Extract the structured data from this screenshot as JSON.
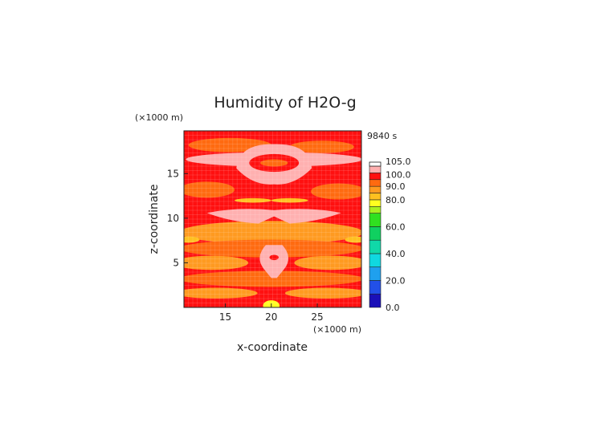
{
  "chart_data": {
    "type": "heatmap",
    "title": "Humidity of H2O-g",
    "xlabel": "x-coordinate",
    "ylabel": "z-coordinate",
    "x_unit": "(×1000 m)",
    "y_unit": "(×1000 m)",
    "time_label": "9840 s",
    "xlim": [
      10.5,
      29.8
    ],
    "ylim": [
      0,
      19.8
    ],
    "x_ticks": [
      "15",
      "20",
      "25"
    ],
    "x_tick_values": [
      15,
      20,
      25
    ],
    "y_ticks": [
      "5",
      "10",
      "15"
    ],
    "y_tick_values": [
      5,
      10,
      15
    ],
    "colorbar": {
      "labels": [
        "105.0",
        "100.0",
        "90.0",
        "80.0",
        "60.0",
        "40.0",
        "20.0",
        "0.0"
      ],
      "label_values": [
        105,
        100,
        90,
        80,
        60,
        40,
        20,
        0
      ],
      "levels": [
        {
          "min": 0,
          "max": 10,
          "color": "#1a10b8"
        },
        {
          "min": 10,
          "max": 20,
          "color": "#2250e8"
        },
        {
          "min": 20,
          "max": 30,
          "color": "#1fa0ee"
        },
        {
          "min": 30,
          "max": 40,
          "color": "#10d8e0"
        },
        {
          "min": 40,
          "max": 50,
          "color": "#10d8a8"
        },
        {
          "min": 50,
          "max": 60,
          "color": "#10d060"
        },
        {
          "min": 60,
          "max": 70,
          "color": "#30e020"
        },
        {
          "min": 70,
          "max": 75,
          "color": "#a8f020"
        },
        {
          "min": 75,
          "max": 80,
          "color": "#ffff20"
        },
        {
          "min": 80,
          "max": 85,
          "color": "#ffc020"
        },
        {
          "min": 85,
          "max": 90,
          "color": "#ff9a20"
        },
        {
          "min": 90,
          "max": 95,
          "color": "#ff6a10"
        },
        {
          "min": 95,
          "max": 100,
          "color": "#ff1010"
        },
        {
          "min": 100,
          "max": 105,
          "color": "#ffb0b0"
        },
        {
          "min": 105,
          "max": 110,
          "color": "#ffffff"
        }
      ]
    },
    "regions": [
      {
        "level": "95-100",
        "desc": "background"
      },
      {
        "level": "85-95",
        "desc": "banded zones"
      },
      {
        "level": "100-105",
        "desc": "upper lens",
        "x": [
          11,
          29.8
        ],
        "z": [
          15.8,
          17.4
        ]
      },
      {
        "level": "100-105",
        "desc": "upper dome",
        "x": [
          16,
          24.5
        ],
        "z": [
          14,
          18
        ]
      },
      {
        "level": "100-105",
        "desc": "mid anvil",
        "x": [
          13,
          27.5
        ],
        "z": [
          9.8,
          11
        ]
      },
      {
        "level": "100-105",
        "desc": "lower plume",
        "x": [
          18.5,
          21.5
        ],
        "z": [
          3.5,
          6.5
        ]
      }
    ]
  }
}
